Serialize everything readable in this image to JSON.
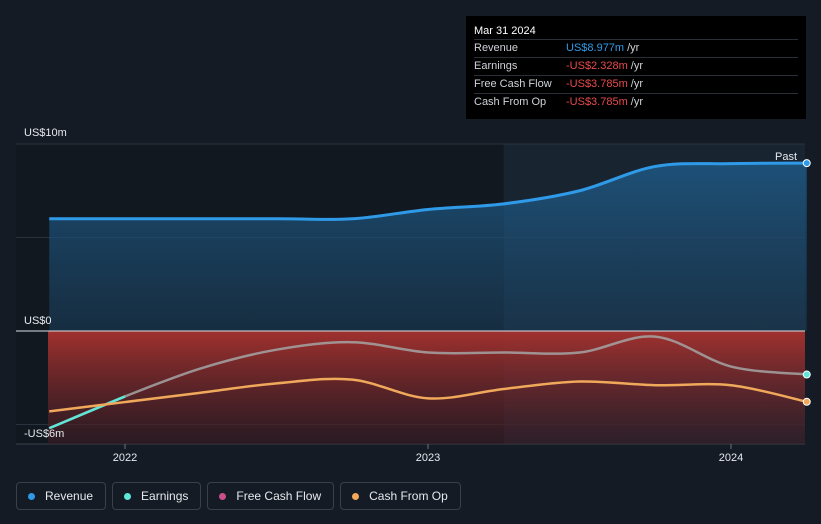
{
  "tooltip": {
    "date": "Mar 31 2024",
    "rows": [
      {
        "label": "Revenue",
        "value": "US$8.977m",
        "unit": "/yr",
        "tone": "blue"
      },
      {
        "label": "Earnings",
        "value": "-US$2.328m",
        "unit": "/yr",
        "tone": "red"
      },
      {
        "label": "Free Cash Flow",
        "value": "-US$3.785m",
        "unit": "/yr",
        "tone": "red"
      },
      {
        "label": "Cash From Op",
        "value": "-US$3.785m",
        "unit": "/yr",
        "tone": "red"
      }
    ]
  },
  "legend": [
    {
      "label": "Revenue",
      "color": "#2f9ae8"
    },
    {
      "label": "Earnings",
      "color": "#5ee6d8"
    },
    {
      "label": "Free Cash Flow",
      "color": "#c94f8a"
    },
    {
      "label": "Cash From Op",
      "color": "#f0a95a"
    }
  ],
  "chart_data": {
    "type": "line",
    "y_labels": {
      "top": "US$10m",
      "zero": "US$0",
      "bottom": "-US$6m"
    },
    "ylim": [
      -6,
      10
    ],
    "xlim": [
      2021.7,
      2024.25
    ],
    "x_ticks": [
      {
        "value": 2022,
        "label": "2022"
      },
      {
        "value": 2023,
        "label": "2023"
      },
      {
        "value": 2024,
        "label": "2024"
      }
    ],
    "past_label": "Past",
    "past_start": 2023.25,
    "series": [
      {
        "name": "Revenue",
        "color": "#2f9ae8",
        "points": [
          [
            2021.75,
            6.0
          ],
          [
            2022.0,
            6.0
          ],
          [
            2022.5,
            6.0
          ],
          [
            2022.75,
            6.0
          ],
          [
            2023.0,
            6.5
          ],
          [
            2023.25,
            6.8
          ],
          [
            2023.5,
            7.5
          ],
          [
            2023.75,
            8.8
          ],
          [
            2024.0,
            8.95
          ],
          [
            2024.25,
            8.977
          ]
        ]
      },
      {
        "name": "Earnings",
        "color": "#a5a5a5",
        "points": [
          [
            2021.75,
            -5.2
          ],
          [
            2022.0,
            -3.5
          ],
          [
            2022.25,
            -2.0
          ],
          [
            2022.5,
            -1.0
          ],
          [
            2022.75,
            -0.6
          ],
          [
            2023.0,
            -1.15
          ],
          [
            2023.25,
            -1.15
          ],
          [
            2023.5,
            -1.15
          ],
          [
            2023.75,
            -0.3
          ],
          [
            2024.0,
            -1.9
          ],
          [
            2024.25,
            -2.328
          ]
        ]
      },
      {
        "name": "Cash From Op",
        "color": "#f0a95a",
        "points": [
          [
            2021.75,
            -4.3
          ],
          [
            2022.0,
            -3.8
          ],
          [
            2022.25,
            -3.3
          ],
          [
            2022.5,
            -2.8
          ],
          [
            2022.75,
            -2.6
          ],
          [
            2023.0,
            -3.6
          ],
          [
            2023.25,
            -3.1
          ],
          [
            2023.5,
            -2.7
          ],
          [
            2023.75,
            -2.9
          ],
          [
            2024.0,
            -2.9
          ],
          [
            2024.25,
            -3.785
          ]
        ]
      }
    ]
  }
}
